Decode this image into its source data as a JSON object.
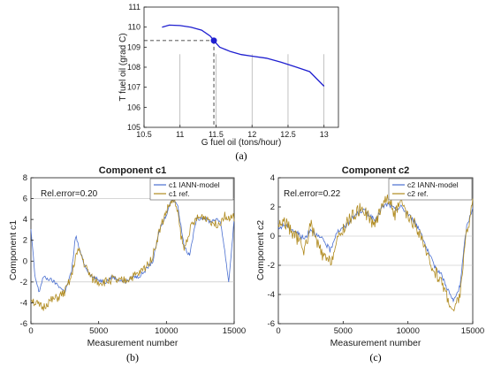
{
  "chart_data": [
    {
      "type": "line",
      "panel_label": "(a)",
      "title": "",
      "xlabel": "G fuel oil (tons/hour)",
      "ylabel": "T fuel oil (grad C)",
      "xlim": [
        10.5,
        13.2
      ],
      "ylim": [
        105,
        111
      ],
      "xticks": [
        10.5,
        11,
        11.5,
        12,
        12.5,
        13
      ],
      "xtick_labels": [
        "10.5",
        "11",
        "11.5",
        "12",
        "12.5",
        "13"
      ],
      "yticks": [
        105,
        106,
        107,
        108,
        109,
        110,
        111
      ],
      "ytick_labels": [
        "105",
        "106",
        "107",
        "108",
        "109",
        "110",
        "111"
      ],
      "series": [
        {
          "name": "",
          "color": "#1f1fd0",
          "x": [
            10.75,
            10.85,
            11.0,
            11.15,
            11.3,
            11.42,
            11.47,
            11.55,
            11.7,
            11.85,
            12.0,
            12.2,
            12.4,
            12.6,
            12.8,
            13.0
          ],
          "y": [
            110.0,
            110.1,
            110.08,
            110.0,
            109.85,
            109.55,
            109.33,
            109.0,
            108.78,
            108.63,
            108.55,
            108.45,
            108.25,
            108.02,
            107.78,
            107.05
          ]
        }
      ],
      "marker": {
        "x": 11.47,
        "y": 109.33,
        "color": "#1f1fd0"
      },
      "reference_lines": {
        "h": 109.33,
        "v": 11.47
      },
      "vertical_lines_x": [
        11.0,
        11.5,
        12.0,
        12.5,
        13.0
      ],
      "grid": false
    },
    {
      "type": "line",
      "panel_label": "(b)",
      "title": "Component c1",
      "xlabel": "Measurement number",
      "ylabel": "Component c1",
      "xlim": [
        0,
        15000
      ],
      "ylim": [
        -6,
        8
      ],
      "xticks": [
        0,
        5000,
        10000,
        15000
      ],
      "xtick_labels": [
        "0",
        "5000",
        "10000",
        "15000"
      ],
      "yticks": [
        -6,
        -4,
        -2,
        0,
        2,
        4,
        6,
        8
      ],
      "ytick_labels": [
        "-6",
        "-4",
        "-2",
        "0",
        "2",
        "4",
        "6",
        "8"
      ],
      "annotation": "Rel.error=0.20",
      "legend_position": "top-right",
      "hlines": [
        6,
        -2
      ],
      "series": [
        {
          "name": "c1 IANN-model",
          "color": "#4a6fd0",
          "x": [
            0,
            300,
            600,
            900,
            1200,
            1500,
            2000,
            2500,
            3000,
            3300,
            3600,
            4000,
            4500,
            5000,
            5500,
            6000,
            6500,
            7000,
            7500,
            8000,
            8500,
            9000,
            9500,
            10000,
            10400,
            10800,
            11000,
            11300,
            11700,
            12200,
            12700,
            13200,
            13600,
            14000,
            14300,
            14600,
            15000
          ],
          "y": [
            3.0,
            -1.5,
            -3.0,
            -1.5,
            -1.7,
            -1.8,
            -2.3,
            -3.0,
            -1.0,
            2.5,
            1.0,
            -0.5,
            -1.5,
            -1.8,
            -2.0,
            -1.5,
            -1.8,
            -2.0,
            -1.5,
            -1.5,
            -0.8,
            0.0,
            3.0,
            4.5,
            6.0,
            5.5,
            4.0,
            1.5,
            0.5,
            4.0,
            4.2,
            3.8,
            4.0,
            3.8,
            1.0,
            -2.0,
            4.0
          ]
        },
        {
          "name": "c1 ref.",
          "color": "#b08a1e",
          "x": [
            0,
            300,
            600,
            900,
            1200,
            1500,
            2000,
            2500,
            3000,
            3300,
            3600,
            4000,
            4500,
            5000,
            5500,
            6000,
            6500,
            7000,
            7500,
            8000,
            8500,
            9000,
            9500,
            10000,
            10400,
            10800,
            11000,
            11300,
            11700,
            12200,
            12700,
            13200,
            13600,
            14000,
            14300,
            14600,
            15000
          ],
          "y": [
            -3.5,
            -4.0,
            -4.3,
            -4.5,
            -4.0,
            -3.8,
            -3.5,
            -3.0,
            -1.5,
            0.5,
            1.0,
            -0.5,
            -1.7,
            -2.0,
            -2.0,
            -1.7,
            -2.0,
            -1.8,
            -1.5,
            -1.2,
            -0.5,
            0.5,
            3.0,
            4.8,
            5.8,
            5.2,
            3.0,
            1.0,
            3.0,
            4.0,
            4.3,
            4.0,
            3.5,
            3.8,
            4.5,
            4.0,
            4.2
          ]
        }
      ],
      "grid": false
    },
    {
      "type": "line",
      "panel_label": "(c)",
      "title": "Component c2",
      "xlabel": "Measurement number",
      "ylabel": "Component c2",
      "xlim": [
        0,
        15000
      ],
      "ylim": [
        -6,
        4
      ],
      "xticks": [
        0,
        5000,
        10000,
        15000
      ],
      "xtick_labels": [
        "0",
        "5000",
        "10000",
        "15000"
      ],
      "yticks": [
        -6,
        -4,
        -2,
        0,
        2,
        4
      ],
      "ytick_labels": [
        "-6",
        "-4",
        "-2",
        "0",
        "2",
        "4"
      ],
      "annotation": "Rel.error=0.22",
      "legend_position": "top-right",
      "hlines": [
        0,
        -2,
        -4
      ],
      "series": [
        {
          "name": "c2 IANN-model",
          "color": "#4a6fd0",
          "x": [
            0,
            500,
            1000,
            1500,
            2000,
            2500,
            3000,
            3500,
            4000,
            4500,
            5000,
            5500,
            6000,
            6500,
            7000,
            7500,
            8000,
            8500,
            9000,
            9500,
            10000,
            10500,
            11000,
            11500,
            12000,
            12500,
            13000,
            13500,
            14000,
            14500,
            15000
          ],
          "y": [
            0.5,
            0.8,
            0.5,
            0.2,
            -0.2,
            0.5,
            0.0,
            -0.3,
            -1.0,
            0.3,
            0.5,
            1.0,
            1.5,
            1.8,
            1.5,
            1.0,
            2.0,
            2.2,
            1.8,
            2.0,
            1.5,
            1.0,
            0.3,
            -1.0,
            -2.0,
            -2.5,
            -3.5,
            -4.5,
            -3.5,
            0.5,
            2.0
          ]
        },
        {
          "name": "c2 ref.",
          "color": "#b08a1e",
          "x": [
            0,
            500,
            1000,
            1500,
            2000,
            2500,
            3000,
            3500,
            4000,
            4500,
            5000,
            5500,
            6000,
            6500,
            7000,
            7500,
            8000,
            8500,
            9000,
            9500,
            10000,
            10500,
            11000,
            11500,
            12000,
            12500,
            13000,
            13500,
            14000,
            14500,
            15000
          ],
          "y": [
            0.8,
            1.0,
            0.3,
            -0.2,
            -1.0,
            0.8,
            -0.5,
            -1.5,
            -1.8,
            -0.5,
            0.5,
            1.2,
            1.6,
            2.0,
            1.2,
            0.8,
            2.3,
            2.6,
            1.5,
            2.3,
            1.2,
            0.8,
            0.0,
            -1.5,
            -2.3,
            -3.0,
            -4.0,
            -5.3,
            -4.0,
            0.0,
            2.4
          ]
        }
      ],
      "grid": false
    }
  ]
}
